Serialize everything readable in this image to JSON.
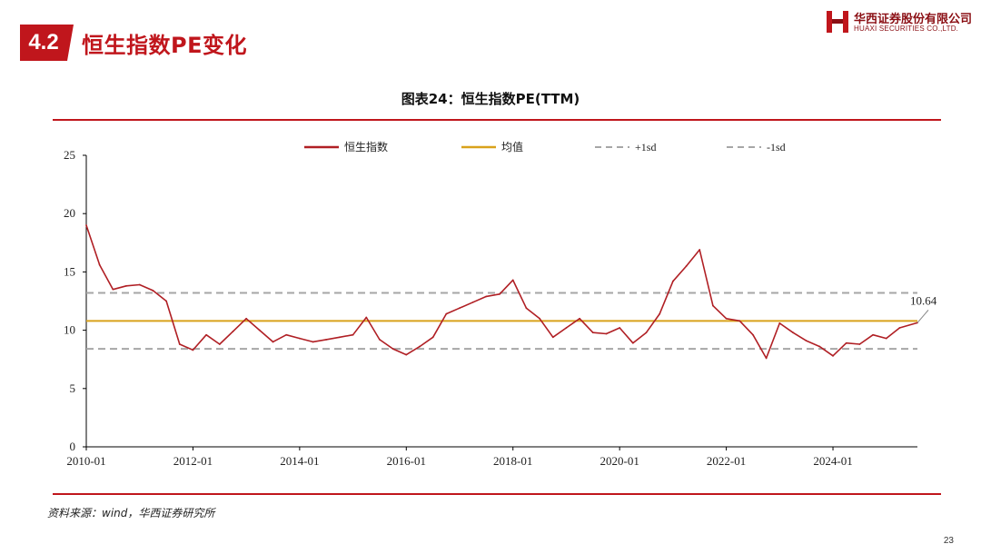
{
  "section": {
    "number": "4.2",
    "title": "恒生指数PE变化"
  },
  "logo": {
    "cn": "华西证券股份有限公司",
    "en": "HUAXI SECURITIES CO.,LTD."
  },
  "caption": "图表24：恒生指数PE(TTM)",
  "source": "资料来源：wind，华西证券研究所",
  "page_number": "23",
  "colors": {
    "series": "#b01f24",
    "mean": "#d9a21b",
    "sd": "#a6a6a6",
    "accent": "#c0161c"
  },
  "chart_data": {
    "type": "line",
    "ylim": [
      0,
      25
    ],
    "y_ticks": [
      "0",
      "5",
      "10",
      "15",
      "20",
      "25"
    ],
    "x_range": [
      "2010-01",
      "2025-08"
    ],
    "x_ticks": [
      "2010-01",
      "2012-01",
      "2014-01",
      "2016-01",
      "2018-01",
      "2020-01",
      "2022-01",
      "2024-01"
    ],
    "legend_position": "top",
    "legend": [
      "恒生指数",
      "均值",
      "+1sd",
      "-1sd"
    ],
    "last_value_label": "10.64",
    "series": [
      {
        "name": "恒生指数",
        "x": [
          "2010-01",
          "2010-04",
          "2010-07",
          "2010-10",
          "2011-01",
          "2011-04",
          "2011-07",
          "2011-10",
          "2012-01",
          "2012-04",
          "2012-07",
          "2012-10",
          "2013-01",
          "2013-04",
          "2013-07",
          "2013-10",
          "2014-01",
          "2014-04",
          "2014-07",
          "2014-10",
          "2015-01",
          "2015-04",
          "2015-07",
          "2015-10",
          "2016-01",
          "2016-04",
          "2016-07",
          "2016-10",
          "2017-01",
          "2017-04",
          "2017-07",
          "2017-10",
          "2018-01",
          "2018-04",
          "2018-07",
          "2018-10",
          "2019-01",
          "2019-04",
          "2019-07",
          "2019-10",
          "2020-01",
          "2020-04",
          "2020-07",
          "2020-10",
          "2021-01",
          "2021-04",
          "2021-07",
          "2021-10",
          "2022-01",
          "2022-04",
          "2022-07",
          "2022-10",
          "2023-01",
          "2023-04",
          "2023-07",
          "2023-10",
          "2024-01",
          "2024-04",
          "2024-07",
          "2024-10",
          "2025-01",
          "2025-04",
          "2025-08"
        ],
        "values": [
          19.0,
          15.6,
          13.5,
          13.8,
          13.9,
          13.4,
          12.5,
          8.8,
          8.3,
          9.6,
          8.8,
          9.9,
          11.0,
          10.0,
          9.0,
          9.6,
          9.3,
          9.0,
          9.2,
          9.4,
          9.6,
          11.1,
          9.2,
          8.4,
          7.9,
          8.6,
          9.4,
          11.4,
          11.9,
          12.4,
          12.9,
          13.1,
          14.3,
          11.9,
          11.0,
          9.4,
          10.2,
          11.0,
          9.8,
          9.7,
          10.2,
          8.9,
          9.8,
          11.4,
          14.2,
          15.5,
          16.9,
          12.1,
          11.0,
          10.8,
          9.6,
          7.6,
          10.6,
          9.8,
          9.1,
          8.6,
          7.8,
          8.9,
          8.8,
          9.6,
          9.3,
          10.2,
          10.64
        ]
      }
    ],
    "mean": 10.8,
    "plus_1sd": 13.2,
    "minus_1sd": 8.4
  }
}
